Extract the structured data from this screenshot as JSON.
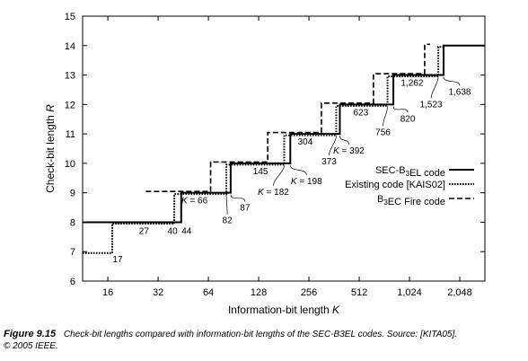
{
  "chart_data": {
    "type": "line",
    "xlabel": "Information-bit length K",
    "ylabel": "Check-bit length R",
    "xscale": "log2",
    "xlim": [
      11.3,
      2896
    ],
    "ylim": [
      6,
      15
    ],
    "x_ticks": [
      16,
      32,
      64,
      128,
      256,
      512,
      1024,
      2048
    ],
    "x_tick_labels": [
      "16",
      "32",
      "64",
      "128",
      "256",
      "512",
      "1,024",
      "2,048"
    ],
    "y_ticks": [
      6,
      7,
      8,
      9,
      10,
      11,
      12,
      13,
      14,
      15
    ],
    "legend_position": "right",
    "series": [
      {
        "name": "SEC-B3EL code",
        "style": "solid",
        "steps": [
          {
            "x": 11.3,
            "y": 8
          },
          {
            "x": 44,
            "y": 9
          },
          {
            "x": 87,
            "y": 10
          },
          {
            "x": 198,
            "y": 11
          },
          {
            "x": 392,
            "y": 12
          },
          {
            "x": 820,
            "y": 13
          },
          {
            "x": 1638,
            "y": 14
          },
          {
            "x": 2896,
            "y": 14
          }
        ]
      },
      {
        "name": "Existing code [KAIS02]",
        "style": "dotted",
        "steps": [
          {
            "x": 11.3,
            "y": 7
          },
          {
            "x": 17,
            "y": 8
          },
          {
            "x": 40,
            "y": 9
          },
          {
            "x": 82,
            "y": 10
          },
          {
            "x": 182,
            "y": 11
          },
          {
            "x": 373,
            "y": 12
          },
          {
            "x": 756,
            "y": 13
          },
          {
            "x": 1523,
            "y": 14
          }
        ]
      },
      {
        "name": "B3EC Fire code",
        "style": "dashed",
        "steps": [
          {
            "x": 27,
            "y": 9
          },
          {
            "x": 66,
            "y": 10
          },
          {
            "x": 145,
            "y": 11
          },
          {
            "x": 304,
            "y": 12
          },
          {
            "x": 623,
            "y": 13
          },
          {
            "x": 1262,
            "y": 14
          }
        ]
      }
    ],
    "annotations": [
      {
        "text": "17",
        "x": 17,
        "y": 7
      },
      {
        "text": "27",
        "x": 27,
        "y": 8
      },
      {
        "text": "40",
        "x": 40,
        "y": 8
      },
      {
        "text": "44",
        "x": 44,
        "y": 8
      },
      {
        "text": "K = 66",
        "x": 66,
        "y": 9
      },
      {
        "text": "82",
        "x": 82,
        "y": 9
      },
      {
        "text": "87",
        "x": 87,
        "y": 9
      },
      {
        "text": "145",
        "x": 145,
        "y": 10
      },
      {
        "text": "K = 182",
        "x": 182,
        "y": 10
      },
      {
        "text": "K = 198",
        "x": 198,
        "y": 10
      },
      {
        "text": "304",
        "x": 304,
        "y": 11
      },
      {
        "text": "373",
        "x": 373,
        "y": 11
      },
      {
        "text": "K = 392",
        "x": 392,
        "y": 11
      },
      {
        "text": "623",
        "x": 623,
        "y": 12
      },
      {
        "text": "756",
        "x": 756,
        "y": 12
      },
      {
        "text": "820",
        "x": 820,
        "y": 12
      },
      {
        "text": "1,262",
        "x": 1262,
        "y": 13
      },
      {
        "text": "1,523",
        "x": 1523,
        "y": 13
      },
      {
        "text": "1,638",
        "x": 1638,
        "y": 13
      }
    ]
  },
  "caption": {
    "figure_label": "Figure 9.15",
    "text": "Check-bit lengths compared with information-bit lengths of the SEC-B3EL codes.  Source: [KITA05].",
    "copyright": "© 2005 IEEE."
  }
}
